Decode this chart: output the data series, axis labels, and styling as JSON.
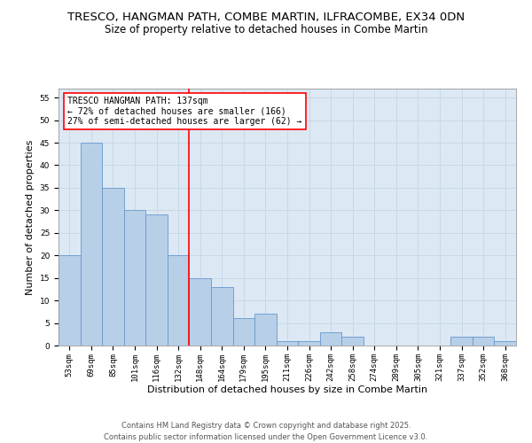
{
  "title": "TRESCO, HANGMAN PATH, COMBE MARTIN, ILFRACOMBE, EX34 0DN",
  "subtitle": "Size of property relative to detached houses in Combe Martin",
  "xlabel": "Distribution of detached houses by size in Combe Martin",
  "ylabel": "Number of detached properties",
  "categories": [
    "53sqm",
    "69sqm",
    "85sqm",
    "101sqm",
    "116sqm",
    "132sqm",
    "148sqm",
    "164sqm",
    "179sqm",
    "195sqm",
    "211sqm",
    "226sqm",
    "242sqm",
    "258sqm",
    "274sqm",
    "289sqm",
    "305sqm",
    "321sqm",
    "337sqm",
    "352sqm",
    "368sqm"
  ],
  "values": [
    20,
    45,
    35,
    30,
    29,
    20,
    15,
    13,
    6,
    7,
    1,
    1,
    3,
    2,
    0,
    0,
    0,
    0,
    2,
    2,
    1
  ],
  "bar_color": "#b8cfe8",
  "bar_edgecolor": "#6699cc",
  "bar_linewidth": 0.6,
  "vline_x": 5.5,
  "vline_color": "red",
  "vline_linewidth": 1.2,
  "annotation_text": "TRESCO HANGMAN PATH: 137sqm\n← 72% of detached houses are smaller (166)\n27% of semi-detached houses are larger (62) →",
  "annotation_box_color": "red",
  "ylim": [
    0,
    57
  ],
  "yticks": [
    0,
    5,
    10,
    15,
    20,
    25,
    30,
    35,
    40,
    45,
    50,
    55
  ],
  "grid_color": "#c8d8e8",
  "background_color": "#dce8f4",
  "footer_line1": "Contains HM Land Registry data © Crown copyright and database right 2025.",
  "footer_line2": "Contains public sector information licensed under the Open Government Licence v3.0.",
  "title_fontsize": 9.5,
  "subtitle_fontsize": 8.5,
  "axis_label_fontsize": 8,
  "tick_fontsize": 6.5,
  "annotation_fontsize": 7,
  "footer_fontsize": 6
}
